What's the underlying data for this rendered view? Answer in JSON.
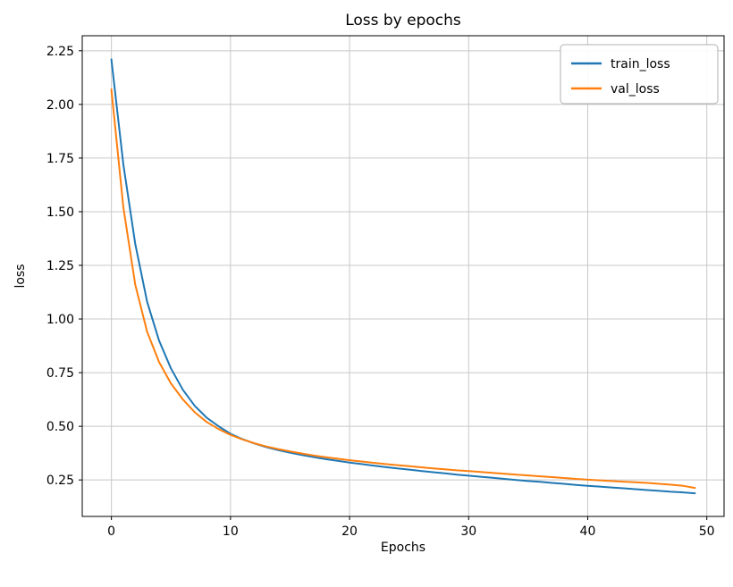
{
  "chart_data": {
    "type": "line",
    "title": "Loss by epochs",
    "xlabel": "Epochs",
    "ylabel": "loss",
    "grid": true,
    "legend_position": "upper right",
    "xlim": [
      -2.45,
      51.45
    ],
    "ylim": [
      0.08,
      2.32
    ],
    "xticks": [
      0,
      10,
      20,
      30,
      40,
      50
    ],
    "yticks": [
      0.25,
      0.5,
      0.75,
      1.0,
      1.25,
      1.5,
      1.75,
      2.0,
      2.25
    ],
    "x": [
      0,
      1,
      2,
      3,
      4,
      5,
      6,
      7,
      8,
      9,
      10,
      11,
      12,
      13,
      14,
      15,
      16,
      17,
      18,
      19,
      20,
      21,
      22,
      23,
      24,
      25,
      26,
      27,
      28,
      29,
      30,
      31,
      32,
      33,
      34,
      35,
      36,
      37,
      38,
      39,
      40,
      41,
      42,
      43,
      44,
      45,
      46,
      47,
      48,
      49
    ],
    "series": [
      {
        "name": "train_loss",
        "color": "#1f77b4",
        "values": [
          2.21,
          1.72,
          1.35,
          1.08,
          0.9,
          0.77,
          0.67,
          0.595,
          0.54,
          0.5,
          0.465,
          0.44,
          0.42,
          0.403,
          0.389,
          0.377,
          0.366,
          0.356,
          0.347,
          0.339,
          0.331,
          0.324,
          0.317,
          0.31,
          0.304,
          0.298,
          0.292,
          0.286,
          0.281,
          0.275,
          0.27,
          0.265,
          0.26,
          0.255,
          0.25,
          0.245,
          0.241,
          0.236,
          0.232,
          0.227,
          0.223,
          0.219,
          0.215,
          0.211,
          0.207,
          0.203,
          0.199,
          0.195,
          0.192,
          0.188
        ]
      },
      {
        "name": "val_loss",
        "color": "#ff7f0e",
        "values": [
          2.07,
          1.52,
          1.16,
          0.94,
          0.8,
          0.7,
          0.625,
          0.565,
          0.52,
          0.487,
          0.46,
          0.439,
          0.421,
          0.406,
          0.394,
          0.383,
          0.373,
          0.364,
          0.356,
          0.349,
          0.342,
          0.336,
          0.33,
          0.324,
          0.319,
          0.314,
          0.309,
          0.304,
          0.3,
          0.295,
          0.291,
          0.287,
          0.283,
          0.279,
          0.275,
          0.271,
          0.267,
          0.263,
          0.259,
          0.255,
          0.251,
          0.248,
          0.245,
          0.242,
          0.239,
          0.236,
          0.232,
          0.228,
          0.223,
          0.213
        ]
      }
    ]
  }
}
